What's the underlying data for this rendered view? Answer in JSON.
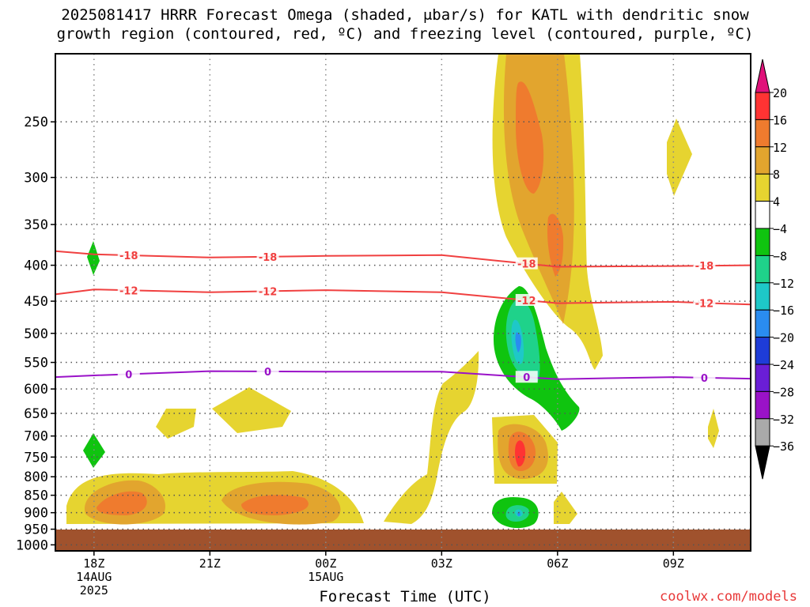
{
  "title_line1": "2025081417 HRRR Forecast Omega (shaded, μbar/s) for KATL with dendritic snow",
  "title_line2": "growth region (contoured, red, ºC) and freezing level (contoured, purple, ºC)",
  "xlabel": "Forecast Time (UTC)",
  "credit": "coolwx.com/models",
  "chart_data": {
    "type": "heatmap",
    "title": "2025081417 HRRR Forecast Omega (shaded, μbar/s) for KATL with dendritic snow growth region (contoured, red, ºC) and freezing level (contoured, purple, ºC)",
    "xlabel": "Forecast Time (UTC)",
    "ylabel": "",
    "x_ticks": [
      {
        "h": 0,
        "lines": [
          "18Z",
          "14AUG",
          "2025"
        ]
      },
      {
        "h": 3,
        "lines": [
          "21Z"
        ]
      },
      {
        "h": 6,
        "lines": [
          "00Z",
          "15AUG"
        ]
      },
      {
        "h": 9,
        "lines": [
          "03Z"
        ]
      },
      {
        "h": 12,
        "lines": [
          "06Z"
        ]
      },
      {
        "h": 15,
        "lines": [
          "09Z"
        ]
      }
    ],
    "xlim_hours": [
      -1,
      17
    ],
    "y_ticks": [
      250,
      300,
      350,
      400,
      450,
      500,
      550,
      600,
      650,
      700,
      750,
      800,
      850,
      900,
      950,
      1000
    ],
    "ylim_hPa": [
      200,
      1020
    ],
    "y_scale": "log (pressure)",
    "grid": true,
    "colorbar": {
      "levels": [
        20,
        16,
        12,
        8,
        4,
        -4,
        -8,
        -12,
        -16,
        -20,
        -24,
        -28,
        -32,
        -36
      ],
      "colors": [
        "#ff3333",
        "#ef7b2e",
        "#e2a52e",
        "#e6d430",
        "#ffffff",
        "#0fc40f",
        "#1fd28a",
        "#1ec8c8",
        "#2a8cf0",
        "#1e3cd8",
        "#6a1ed6",
        "#9a12c8",
        "#aaaaaa"
      ],
      "over_color": "#e0127a",
      "under_color": "#000000"
    },
    "contours_red_C": [
      {
        "label": "-18",
        "points": [
          [
            -1,
            382
          ],
          [
            0,
            386
          ],
          [
            3,
            390
          ],
          [
            6,
            388
          ],
          [
            9,
            387
          ],
          [
            12,
            402
          ],
          [
            15,
            401
          ],
          [
            17,
            400
          ]
        ]
      },
      {
        "label": "-12",
        "points": [
          [
            -1,
            440
          ],
          [
            0,
            433
          ],
          [
            3,
            437
          ],
          [
            6,
            434
          ],
          [
            9,
            437
          ],
          [
            12,
            453
          ],
          [
            15,
            451
          ],
          [
            17,
            455
          ]
        ]
      }
    ],
    "contours_purple_C": [
      {
        "label": "0",
        "points": [
          [
            -1,
            577
          ],
          [
            0,
            574
          ],
          [
            3,
            566
          ],
          [
            6,
            567
          ],
          [
            9,
            567
          ],
          [
            12,
            581
          ],
          [
            15,
            577
          ],
          [
            17,
            580
          ]
        ]
      }
    ],
    "omega_features": [
      {
        "value_bin": "4 to 8",
        "hours": [
          -0.7,
          7.0
        ],
        "hPa": [
          830,
          960
        ]
      },
      {
        "value_bin": "8 to 12",
        "hours": [
          -0.3,
          5.5
        ],
        "hPa": [
          855,
          945
        ]
      },
      {
        "value_bin": "12 to 16",
        "hours": [
          0.0,
          5.0
        ],
        "hPa": [
          875,
          925
        ]
      },
      {
        "value_bin": "4 to 8",
        "hours": [
          9.5,
          13.0
        ],
        "hPa": [
          200,
          580
        ]
      },
      {
        "value_bin": "8 to 12",
        "hours": [
          10.2,
          12.3
        ],
        "hPa": [
          200,
          420
        ]
      },
      {
        "value_bin": "12 to 16",
        "hours": [
          10.6,
          11.4
        ],
        "hPa": [
          235,
          330
        ]
      },
      {
        "value_bin": "-4 to -8",
        "hours": [
          9.5,
          12.5
        ],
        "hPa": [
          440,
          690
        ]
      },
      {
        "value_bin": "-8 to -12",
        "hours": [
          9.8,
          11.3
        ],
        "hPa": [
          470,
          620
        ]
      },
      {
        "value_bin": "-12 to -16",
        "hours": [
          10.3,
          10.8
        ],
        "hPa": [
          520,
          560
        ]
      },
      {
        "value_bin": "12 to 16",
        "hours": [
          10.8,
          11.1
        ],
        "hPa": [
          740,
          790
        ]
      },
      {
        "value_bin": "-8 to -12",
        "hours": [
          9.8,
          11.0
        ],
        "hPa": [
          905,
          955
        ]
      },
      {
        "value_bin": "4 to 8",
        "hours": [
          14.8,
          15.5
        ],
        "hPa": [
          255,
          320
        ]
      },
      {
        "value_bin": "-4 to -8",
        "hours": [
          -0.2,
          0.2
        ],
        "hPa": [
          390,
          430
        ]
      },
      {
        "value_bin": "-4 to -8",
        "hours": [
          -0.3,
          0.3
        ],
        "hPa": [
          720,
          795
        ]
      }
    ],
    "ground_color": "#a0522d"
  }
}
